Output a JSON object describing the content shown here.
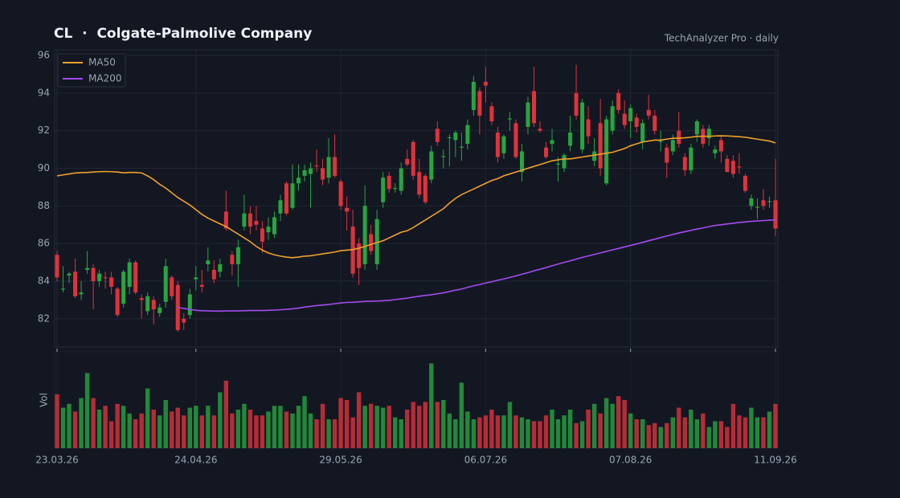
{
  "chart_data": {
    "type": "candlestick",
    "title": "CL  ·  Colgate-Palmolive Company",
    "subtitle": "TechAnalyzer Pro · daily",
    "volume_label": "Vol",
    "categories": [
      "23.03.26",
      null,
      null,
      null,
      null,
      null,
      null,
      null,
      null,
      null,
      null,
      null,
      null,
      null,
      null,
      null,
      null,
      null,
      null,
      null,
      null,
      null,
      null,
      "24.04.26",
      null,
      null,
      null,
      null,
      null,
      null,
      null,
      null,
      null,
      null,
      null,
      null,
      null,
      null,
      null,
      null,
      null,
      null,
      null,
      null,
      null,
      null,
      null,
      "29.05.26",
      null,
      null,
      null,
      null,
      null,
      null,
      null,
      null,
      null,
      null,
      null,
      null,
      null,
      null,
      null,
      null,
      null,
      null,
      null,
      null,
      null,
      null,
      null,
      "06.07.26",
      null,
      null,
      null,
      null,
      null,
      null,
      null,
      null,
      null,
      null,
      null,
      null,
      null,
      null,
      null,
      null,
      null,
      null,
      null,
      null,
      null,
      null,
      null,
      "07.08.26",
      null,
      null,
      null,
      null,
      null,
      null,
      null,
      null,
      null,
      null,
      null,
      null,
      null,
      null,
      null,
      null,
      null,
      null,
      null,
      null,
      null,
      null,
      null,
      "11.09.26"
    ],
    "ohlc": [
      [
        85.4,
        85.6,
        84.0,
        84.2
      ],
      [
        83.55,
        84.8,
        83.4,
        83.6
      ],
      [
        84.3,
        84.5,
        83.9,
        84.4
      ],
      [
        84.5,
        85.2,
        83.1,
        83.2
      ],
      [
        83.3,
        84.0,
        83.0,
        83.4
      ],
      [
        84.6,
        85.6,
        84.4,
        84.7
      ],
      [
        84.7,
        84.9,
        82.5,
        84.0
      ],
      [
        84.0,
        84.6,
        83.7,
        84.4
      ],
      [
        84.2,
        84.5,
        83.6,
        84.15
      ],
      [
        84.2,
        84.5,
        83.3,
        83.7
      ],
      [
        83.6,
        83.7,
        82.1,
        82.2
      ],
      [
        82.8,
        84.6,
        82.6,
        84.5
      ],
      [
        83.7,
        85.2,
        83.3,
        85.0
      ],
      [
        85.0,
        85.1,
        83.3,
        83.4
      ],
      [
        83.1,
        83.3,
        82.0,
        83.0
      ],
      [
        82.4,
        83.4,
        82.2,
        83.2
      ],
      [
        83.0,
        83.2,
        81.7,
        82.5
      ],
      [
        82.3,
        82.8,
        82.1,
        82.6
      ],
      [
        82.9,
        85.2,
        82.6,
        84.8
      ],
      [
        84.2,
        84.3,
        83.0,
        83.2
      ],
      [
        83.8,
        84.0,
        81.3,
        81.4
      ],
      [
        82.0,
        82.3,
        81.4,
        81.8
      ],
      [
        82.2,
        83.6,
        82.0,
        83.3
      ],
      [
        84.1,
        84.8,
        83.5,
        84.2
      ],
      [
        83.8,
        84.6,
        83.4,
        83.7
      ],
      [
        84.9,
        85.8,
        84.5,
        85.1
      ],
      [
        84.6,
        85.1,
        83.9,
        84.1
      ],
      [
        84.5,
        85.2,
        84.2,
        84.9
      ],
      [
        87.7,
        88.8,
        86.7,
        86.8
      ],
      [
        85.4,
        85.6,
        84.3,
        84.9
      ],
      [
        84.9,
        86.2,
        83.7,
        85.8
      ],
      [
        86.9,
        88.6,
        86.7,
        87.6
      ],
      [
        87.6,
        88.0,
        86.5,
        86.9
      ],
      [
        87.2,
        88.0,
        86.7,
        87.0
      ],
      [
        86.8,
        87.2,
        85.5,
        86.1
      ],
      [
        86.6,
        87.4,
        86.2,
        86.9
      ],
      [
        86.5,
        87.7,
        86.3,
        87.4
      ],
      [
        87.6,
        88.6,
        87.2,
        88.3
      ],
      [
        89.2,
        89.3,
        87.5,
        87.6
      ],
      [
        87.9,
        90.2,
        87.8,
        89.2
      ],
      [
        89.2,
        90.2,
        88.8,
        89.5
      ],
      [
        89.6,
        90.2,
        89.3,
        89.9
      ],
      [
        89.7,
        90.3,
        87.9,
        90.0
      ],
      [
        90.15,
        91.0,
        89.8,
        90.1
      ],
      [
        90.0,
        90.5,
        89.1,
        89.4
      ],
      [
        89.5,
        91.6,
        89.2,
        90.6
      ],
      [
        90.6,
        91.8,
        89.5,
        89.6
      ],
      [
        89.3,
        89.4,
        87.8,
        88.0
      ],
      [
        87.9,
        88.5,
        86.7,
        87.7
      ],
      [
        86.9,
        87.8,
        84.2,
        84.4
      ],
      [
        86.0,
        86.3,
        83.8,
        84.7
      ],
      [
        84.9,
        89.1,
        84.6,
        88.0
      ],
      [
        86.5,
        87.0,
        85.4,
        85.6
      ],
      [
        84.9,
        87.8,
        84.6,
        87.3
      ],
      [
        88.2,
        89.8,
        87.9,
        89.5
      ],
      [
        89.6,
        89.8,
        88.7,
        88.9
      ],
      [
        88.9,
        89.2,
        88.7,
        88.95
      ],
      [
        88.8,
        90.3,
        88.6,
        90.0
      ],
      [
        90.5,
        91.0,
        90.1,
        90.2
      ],
      [
        91.4,
        91.5,
        89.4,
        89.6
      ],
      [
        89.8,
        90.5,
        88.4,
        88.6
      ],
      [
        89.6,
        89.7,
        88.1,
        88.2
      ],
      [
        89.4,
        91.2,
        89.2,
        90.9
      ],
      [
        92.1,
        92.5,
        91.2,
        91.4
      ],
      [
        90.6,
        91.0,
        90.0,
        90.65
      ],
      [
        91.6,
        91.8,
        90.1,
        91.65
      ],
      [
        91.5,
        92.0,
        90.6,
        91.9
      ],
      [
        91.1,
        91.9,
        90.4,
        91.15
      ],
      [
        91.3,
        92.6,
        91.0,
        92.3
      ],
      [
        93.1,
        94.9,
        92.8,
        94.6
      ],
      [
        94.1,
        94.3,
        91.8,
        92.8
      ],
      [
        94.6,
        95.4,
        93.5,
        94.4
      ],
      [
        93.3,
        93.5,
        92.3,
        92.5
      ],
      [
        91.9,
        92.2,
        90.3,
        90.6
      ],
      [
        90.8,
        91.8,
        90.5,
        91.7
      ],
      [
        92.6,
        93.0,
        92.0,
        92.65
      ],
      [
        92.4,
        92.6,
        90.5,
        90.6
      ],
      [
        89.8,
        91.3,
        89.3,
        90.9
      ],
      [
        92.2,
        93.8,
        91.8,
        93.5
      ],
      [
        94.1,
        95.4,
        92.2,
        92.4
      ],
      [
        92.1,
        92.5,
        91.9,
        92.0
      ],
      [
        91.1,
        91.4,
        90.5,
        90.6
      ],
      [
        91.3,
        92.1,
        90.9,
        91.5
      ],
      [
        90.2,
        90.6,
        89.3,
        90.25
      ],
      [
        90.0,
        90.8,
        89.8,
        90.7
      ],
      [
        91.2,
        92.8,
        90.9,
        91.9
      ],
      [
        94.0,
        95.5,
        92.6,
        92.8
      ],
      [
        91.0,
        93.7,
        90.8,
        93.5
      ],
      [
        92.6,
        93.3,
        91.3,
        91.7
      ],
      [
        90.4,
        91.6,
        90.1,
        90.9
      ],
      [
        92.4,
        93.7,
        89.6,
        90.0
      ],
      [
        89.2,
        92.8,
        89.1,
        92.6
      ],
      [
        92.0,
        93.6,
        91.8,
        93.3
      ],
      [
        94.0,
        94.2,
        92.9,
        93.1
      ],
      [
        92.9,
        93.6,
        92.1,
        92.3
      ],
      [
        92.5,
        93.4,
        91.6,
        93.2
      ],
      [
        92.7,
        92.9,
        91.9,
        92.2
      ],
      [
        91.4,
        92.6,
        91.0,
        92.4
      ],
      [
        93.1,
        93.9,
        92.6,
        92.8
      ],
      [
        92.8,
        93.1,
        91.8,
        92.0
      ],
      [
        91.4,
        92.0,
        90.9,
        91.45
      ],
      [
        91.1,
        91.3,
        89.5,
        90.3
      ],
      [
        90.9,
        91.8,
        90.7,
        91.5
      ],
      [
        92.0,
        93.0,
        91.1,
        91.3
      ],
      [
        90.6,
        90.8,
        89.6,
        89.9
      ],
      [
        89.9,
        91.3,
        89.7,
        91.1
      ],
      [
        91.8,
        92.6,
        91.4,
        92.5
      ],
      [
        92.1,
        92.3,
        91.1,
        91.3
      ],
      [
        91.6,
        92.3,
        91.2,
        92.1
      ],
      [
        90.8,
        91.2,
        90.5,
        91.0
      ],
      [
        91.5,
        91.7,
        90.3,
        90.9
      ],
      [
        90.5,
        90.7,
        89.8,
        89.8
      ],
      [
        90.4,
        90.7,
        89.5,
        89.7
      ],
      [
        90.1,
        90.8,
        89.7,
        90.05
      ],
      [
        89.6,
        89.7,
        88.7,
        88.8
      ],
      [
        88.0,
        88.6,
        87.8,
        88.4
      ],
      [
        87.9,
        88.4,
        87.3,
        87.95
      ],
      [
        88.3,
        88.9,
        87.8,
        88.0
      ],
      [
        88.2,
        88.5,
        87.9,
        88.25
      ],
      [
        88.3,
        90.5,
        86.4,
        86.8
      ]
    ],
    "up_color": "#26a641",
    "down_color": "#e0323c",
    "volume": [
      2.8,
      2.1,
      2.3,
      1.9,
      2.6,
      3.9,
      2.6,
      2.0,
      2.2,
      1.4,
      2.3,
      2.2,
      1.8,
      1.5,
      1.8,
      3.1,
      2.0,
      1.7,
      2.5,
      1.9,
      2.1,
      1.7,
      2.1,
      2.2,
      1.7,
      2.2,
      1.7,
      2.9,
      3.5,
      1.8,
      2.0,
      2.3,
      2.0,
      1.7,
      1.7,
      1.9,
      2.2,
      2.2,
      1.9,
      1.8,
      2.2,
      2.7,
      1.8,
      1.5,
      2.3,
      1.5,
      1.5,
      2.6,
      2.5,
      1.6,
      2.9,
      2.2,
      2.3,
      2.2,
      2.1,
      2.2,
      1.6,
      1.5,
      2.0,
      2.4,
      2.2,
      2.4,
      4.4,
      2.4,
      2.5,
      1.8,
      1.5,
      3.4,
      1.9,
      1.5,
      1.6,
      1.7,
      2.0,
      1.7,
      1.7,
      2.4,
      1.7,
      1.6,
      1.5,
      1.4,
      1.4,
      1.7,
      2.0,
      1.5,
      1.7,
      2.0,
      1.3,
      1.4,
      2.0,
      2.3,
      1.8,
      2.6,
      2.3,
      2.7,
      2.5,
      1.8,
      1.5,
      1.5,
      1.2,
      1.3,
      1.1,
      1.3,
      1.6,
      2.1,
      1.6,
      2.0,
      1.5,
      1.8,
      1.1,
      1.4,
      1.4,
      1.1,
      2.3,
      1.7,
      1.6,
      2.1,
      1.6,
      1.6,
      1.9,
      2.3
    ],
    "volume_ylim": [
      0,
      5
    ],
    "series": [
      {
        "name": "MA50",
        "color": "#f0a02c",
        "values": [
          89.6,
          89.65,
          89.7,
          89.75,
          89.77,
          89.78,
          89.8,
          89.82,
          89.83,
          89.82,
          89.8,
          89.76,
          89.78,
          89.78,
          89.75,
          89.6,
          89.4,
          89.15,
          88.95,
          88.7,
          88.45,
          88.25,
          88.05,
          87.8,
          87.55,
          87.35,
          87.2,
          87.05,
          86.9,
          86.7,
          86.5,
          86.3,
          86.1,
          85.85,
          85.65,
          85.5,
          85.4,
          85.33,
          85.28,
          85.25,
          85.28,
          85.33,
          85.35,
          85.4,
          85.45,
          85.5,
          85.55,
          85.62,
          85.65,
          85.68,
          85.75,
          85.85,
          85.95,
          86.05,
          86.15,
          86.3,
          86.45,
          86.6,
          86.68,
          86.85,
          87.05,
          87.25,
          87.45,
          87.65,
          87.85,
          88.15,
          88.4,
          88.6,
          88.75,
          88.9,
          89.05,
          89.2,
          89.35,
          89.45,
          89.6,
          89.7,
          89.8,
          89.9,
          90.0,
          90.1,
          90.2,
          90.3,
          90.4,
          90.45,
          90.5,
          90.5,
          90.55,
          90.6,
          90.65,
          90.7,
          90.75,
          90.8,
          90.85,
          90.95,
          91.05,
          91.2,
          91.3,
          91.4,
          91.45,
          91.5,
          91.5,
          91.55,
          91.6,
          91.6,
          91.62,
          91.65,
          91.7,
          91.7,
          91.7,
          91.72,
          91.73,
          91.72,
          91.7,
          91.68,
          91.65,
          91.6,
          91.55,
          91.5,
          91.45,
          91.35
        ]
      },
      {
        "name": "MA200",
        "color": "#a24cf0",
        "values": [
          null,
          null,
          null,
          null,
          null,
          null,
          null,
          null,
          null,
          null,
          null,
          null,
          null,
          null,
          null,
          null,
          null,
          null,
          null,
          null,
          82.6,
          82.55,
          82.5,
          82.45,
          82.43,
          82.42,
          82.41,
          82.41,
          82.42,
          82.42,
          82.42,
          82.43,
          82.44,
          82.44,
          82.44,
          82.45,
          82.46,
          82.48,
          82.5,
          82.53,
          82.57,
          82.62,
          82.66,
          82.7,
          82.73,
          82.76,
          82.8,
          82.84,
          82.87,
          82.88,
          82.9,
          82.92,
          82.93,
          82.94,
          82.96,
          82.98,
          83.02,
          83.06,
          83.1,
          83.15,
          83.2,
          83.24,
          83.28,
          83.33,
          83.38,
          83.45,
          83.52,
          83.58,
          83.67,
          83.75,
          83.82,
          83.9,
          83.97,
          84.05,
          84.12,
          84.2,
          84.28,
          84.37,
          84.45,
          84.55,
          84.63,
          84.72,
          84.82,
          84.91,
          85.0,
          85.08,
          85.17,
          85.26,
          85.34,
          85.42,
          85.5,
          85.58,
          85.66,
          85.74,
          85.82,
          85.9,
          85.98,
          86.06,
          86.15,
          86.23,
          86.32,
          86.4,
          86.48,
          86.56,
          86.63,
          86.7,
          86.77,
          86.83,
          86.9,
          86.96,
          87.0,
          87.04,
          87.08,
          87.12,
          87.15,
          87.18,
          87.2,
          87.22,
          87.24,
          87.26
        ]
      }
    ],
    "ylim": [
      80.5,
      96.3
    ],
    "yticks": [
      82,
      84,
      86,
      88,
      90,
      92,
      94,
      96
    ],
    "grid": true,
    "legend": "top-left"
  }
}
